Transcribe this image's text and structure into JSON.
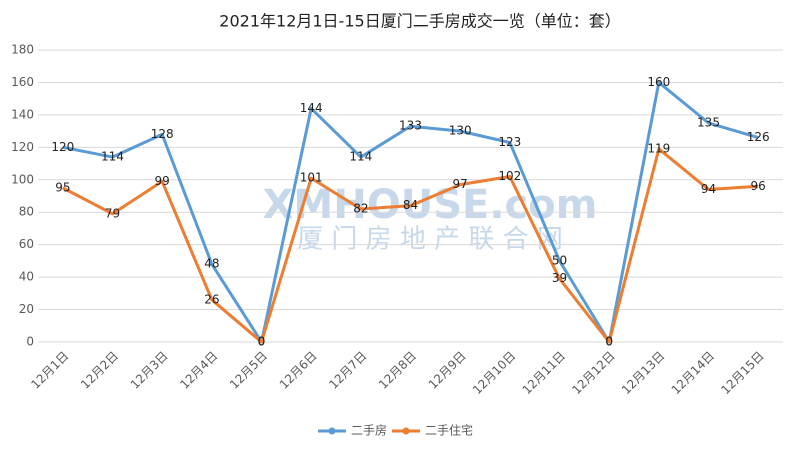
{
  "chart_data": {
    "type": "line",
    "title": "2021年12月1日-15日厦门二手房成交一览（单位：套）",
    "categories": [
      "12月1日",
      "12月2日",
      "12月3日",
      "12月4日",
      "12月5日",
      "12月6日",
      "12月7日",
      "12月8日",
      "12月9日",
      "12月10日",
      "12月11日",
      "12月12日",
      "12月13日",
      "12月14日",
      "12月15日"
    ],
    "series": [
      {
        "name": "二手房",
        "color": "#5b9bd5",
        "values": [
          120,
          114,
          128,
          48,
          0,
          144,
          114,
          133,
          130,
          123,
          50,
          0,
          160,
          135,
          126
        ]
      },
      {
        "name": "二手住宅",
        "color": "#ed7d31",
        "values": [
          95,
          79,
          99,
          26,
          0,
          101,
          82,
          84,
          97,
          102,
          39,
          0,
          119,
          94,
          96
        ]
      }
    ],
    "ylim": [
      0,
      180
    ],
    "yticks": [
      0,
      20,
      40,
      60,
      80,
      100,
      120,
      140,
      160,
      180
    ],
    "grid": true,
    "legend": "bottom",
    "watermark": {
      "text": "XMHOUSE.com",
      "subtitle": "厦 门 房 地 产 联 合 网"
    }
  }
}
